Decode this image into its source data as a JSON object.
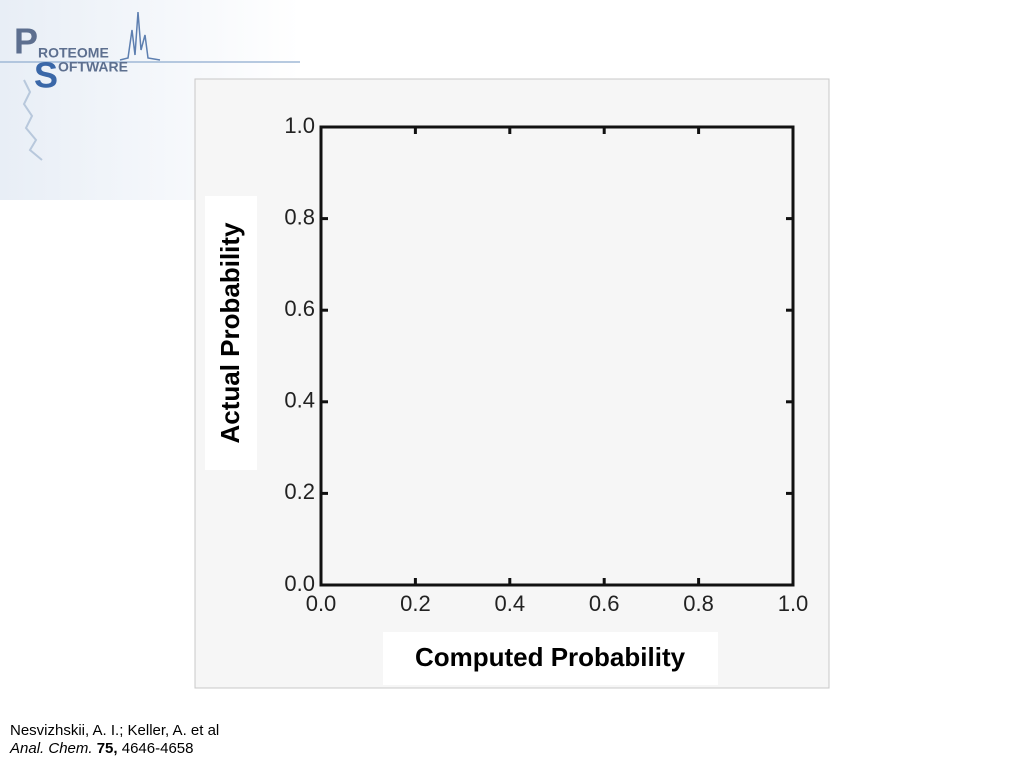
{
  "logo": {
    "p": "P",
    "top": "ROTEOME",
    "s": "S",
    "bottom": "OFTWARE"
  },
  "chart_data": {
    "type": "scatter",
    "xlabel": "Computed Probability",
    "ylabel": "Actual Probability",
    "xlim": [
      0,
      1
    ],
    "ylim": [
      0,
      1
    ],
    "xticks": [
      {
        "value": 0,
        "label": "0.0"
      },
      0.2,
      0.4,
      0.6,
      0.8,
      {
        "value": 1,
        "label": "1.0"
      }
    ],
    "yticks": [
      {
        "value": 0,
        "label": "0.0"
      },
      0.2,
      0.4,
      0.6,
      0.8,
      {
        "value": 1,
        "label": "1.0"
      }
    ],
    "grid": false
  },
  "citation": {
    "authors": "Nesvizhskii, A. I.; Keller, A. et al",
    "journal": "Anal. Chem.",
    "volume": "75,",
    "pages": "4646-4658"
  }
}
